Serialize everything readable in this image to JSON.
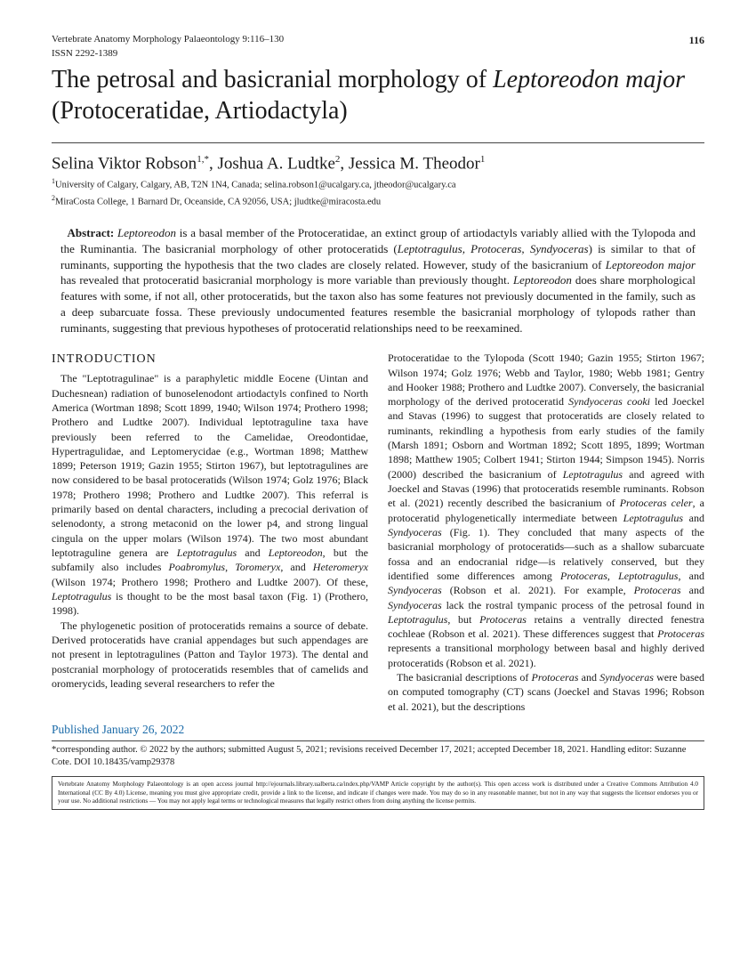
{
  "header": {
    "journal": "Vertebrate Anatomy Morphology Palaeontology 9:116–130",
    "issn": "ISSN 2292-1389",
    "page_number": "116"
  },
  "title": {
    "pre": "The petrosal and basicranial morphology of ",
    "ital": "Leptoreodon major",
    "post": " (Protoceratidae, Artiodactyla)"
  },
  "authors": "Selina Viktor Robson",
  "author_sup1": "1,*",
  "author2": ", Joshua A. Ludtke",
  "author_sup2": "2",
  "author3": ", Jessica M. Theodor",
  "author_sup3": "1",
  "affiliations": {
    "a1_sup": "1",
    "a1": "University of Calgary, Calgary, AB, T2N 1N4, Canada; selina.robson1@ucalgary.ca, jtheodor@ucalgary.ca",
    "a2_sup": "2",
    "a2": "MiraCosta College, 1 Barnard Dr, Oceanside, CA 92056, USA; jludtke@miracosta.edu"
  },
  "abstract": {
    "label": "Abstract: ",
    "t1": "Leptoreodon",
    "t2": " is a basal member of the Protoceratidae, an extinct group of artiodactyls variably allied with the Tylopoda and the Ruminantia. The basicranial morphology of other protoceratids (",
    "t3": "Leptotragulus, Protoceras, Syndyoceras",
    "t4": ") is similar to that of ruminants, supporting the hypothesis that the two clades are closely related. However, study of the basicranium of ",
    "t5": "Leptoreodon major",
    "t6": " has revealed that protoceratid basicranial morphology is more variable than previously thought. ",
    "t7": "Leptoreodon",
    "t8": " does share morphological features with some, if not all, other protoceratids, but the taxon also has some features not previously documented in the family, such as a deep subarcuate fossa. These previously undocumented features resemble the basicranial morphology of tylopods rather than ruminants, suggesting that previous hypotheses of protoceratid relationships need to be reexamined."
  },
  "section_head": "INTRODUCTION",
  "col1": {
    "p1a": "The \"Leptotragulinae\" is a paraphyletic middle Eocene (Uintan and Duchesnean) radiation of bunoselenodont artiodactyls confined to North America (Wortman 1898; Scott 1899, 1940; Wilson 1974; Prothero 1998; Prothero and Ludtke 2007). Individual leptotraguline taxa have previously been referred to the Camelidae, Oreodontidae, Hypertragulidae, and Leptomerycidae (e.g., Wortman 1898; Matthew 1899; Peterson 1919; Gazin 1955; Stirton 1967), but leptotragulines are now considered to be basal protoceratids (Wilson 1974; Golz 1976; Black 1978; Prothero 1998; Prothero and Ludtke 2007). This referral is primarily based on dental characters, including a precocial derivation of selenodonty, a strong metaconid on the lower p4, and strong lingual cingula on the upper molars (Wilson 1974). The two most abundant leptotraguline genera are ",
    "p1i1": "Leptotragulus",
    "p1b": " and ",
    "p1i2": "Leptoreodon",
    "p1c": ", but the subfamily also includes ",
    "p1i3": "Poabromylus",
    "p1d": ", ",
    "p1i4": "Toromeryx",
    "p1e": ", and ",
    "p1i5": "Heteromeryx",
    "p1f": " (Wilson 1974; Prothero 1998; Prothero and Ludtke 2007). Of these, ",
    "p1i6": "Leptotragulus",
    "p1g": " is thought to be the most basal taxon (Fig. 1) (Prothero, 1998).",
    "p2": "The phylogenetic position of protoceratids remains a source of debate. Derived protoceratids have cranial appendages but such appendages are not present in leptotragulines (Patton and Taylor 1973). The dental and postcranial morphology of protoceratids resembles that of camelids and oromerycids, leading several researchers to refer the"
  },
  "col2": {
    "p1a": "Protoceratidae to the Tylopoda (Scott 1940; Gazin 1955; Stirton 1967; Wilson 1974; Golz 1976; Webb and Taylor, 1980; Webb 1981; Gentry and Hooker 1988; Prothero and Ludtke 2007). Conversely, the basicranial morphology of the derived protoceratid ",
    "p1i1": "Syndyoceras cooki",
    "p1b": " led Joeckel and Stavas (1996) to suggest that protoceratids are closely related to ruminants, rekindling a hypothesis from early studies of the family (Marsh 1891; Osborn and Wortman 1892; Scott 1895, 1899; Wortman 1898; Matthew 1905; Colbert 1941; Stirton 1944; Simpson 1945). Norris (2000) described the basicranium of ",
    "p1i2": "Leptotragulus",
    "p1c": " and agreed with Joeckel and Stavas (1996) that protoceratids resemble ruminants. Robson et al. (2021) recently described the basicranium of ",
    "p1i3": "Protoceras celer",
    "p1d": ", a protoceratid phylogenetically intermediate between ",
    "p1i4": "Leptotragulus",
    "p1e": " and ",
    "p1i5": "Syndyoceras",
    "p1f": " (Fig. 1). They concluded that many aspects of the basicranial morphology of protoceratids—such as a shallow subarcuate fossa and an endocranial ridge—is relatively conserved, but they identified some differences among ",
    "p1i6": "Protoceras",
    "p1g": ", ",
    "p1i7": "Leptotragulus",
    "p1h": ", and ",
    "p1i8": "Syndyoceras",
    "p1j": " (Robson et al. 2021). For example, ",
    "p1i9": "Protoceras",
    "p1k": " and ",
    "p1i10": "Syndyoceras",
    "p1l": " lack the rostral tympanic process of the petrosal found in ",
    "p1i11": "Leptotragulus",
    "p1m": ", but ",
    "p1i12": "Protoceras",
    "p1n": " retains a ventrally directed fenestra cochleae (Robson et al. 2021). These differences suggest that ",
    "p1i13": "Protoceras",
    "p1o": " represents a transitional morphology between basal and highly derived protoceratids (Robson et al. 2021).",
    "p2a": "The basicranial descriptions of ",
    "p2i1": "Protoceras",
    "p2b": " and ",
    "p2i2": "Syndyoceras",
    "p2c": " were based on computed tomography (CT) scans (Joeckel and Stavas 1996; Robson et al. 2021), but the descriptions"
  },
  "published": "Published January 26, 2022",
  "footer": {
    "line": "*corresponding author. © 2022 by the authors; submitted August 5, 2021; revisions received December 17, 2021; accepted December 18, 2021. Handling editor: Suzanne Cote.  DOI 10.18435/vamp29378"
  },
  "license": "Vertebrate Anatomy Morphology Palaeontology is an open access journal http://ejournals.library.ualberta.ca/index.php/VAMP  Article copyright by the author(s). This open access work is distributed under a Creative Commons Attribution 4.0 International (CC By 4.0) License, meaning you must give appropriate credit, provide a link to the license, and indicate if changes were made. You may do so in any reasonable manner, but not in any way that suggests the licensor endorses you or your use. No additional restrictions — You may not apply legal terms or technological measures that legally restrict others from doing anything the license permits."
}
